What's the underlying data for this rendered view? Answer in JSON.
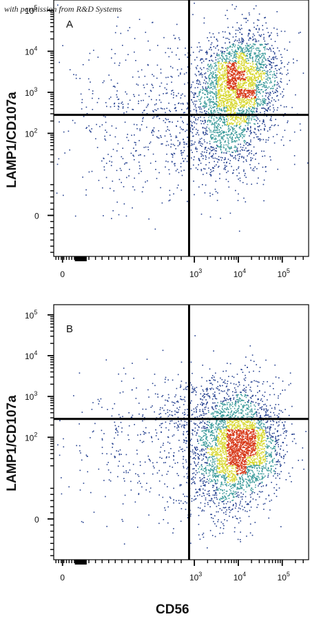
{
  "watermark": "with permission from R&D Systems",
  "colors": {
    "density_low": "#233f8f",
    "density_mid": "#3a9a9a",
    "density_high": "#d8d830",
    "density_peak": "#d83a1a",
    "quadrant_line": "#000000"
  },
  "x_label": "CD56",
  "chart_data": [
    {
      "type": "scatter",
      "panel_label": "A",
      "xlabel": "CD56",
      "ylabel": "LAMP1/CD107a",
      "scale": "biexponential",
      "xlim": [
        -0.2,
        5.6
      ],
      "ylim": [
        -1.0,
        5.25
      ],
      "x_ticks": [
        {
          "value": 0,
          "base": "0",
          "exp": ""
        },
        {
          "value": 3,
          "base": "10",
          "exp": "3"
        },
        {
          "value": 4,
          "base": "10",
          "exp": "4"
        },
        {
          "value": 5,
          "base": "10",
          "exp": "5"
        }
      ],
      "y_ticks": [
        {
          "value": 0,
          "base": "0",
          "exp": ""
        },
        {
          "value": 2,
          "base": "10",
          "exp": "2"
        },
        {
          "value": 3,
          "base": "10",
          "exp": "3"
        },
        {
          "value": 4,
          "base": "10",
          "exp": "4"
        },
        {
          "value": 5,
          "base": "10",
          "exp": "5"
        }
      ],
      "quadrant_gate": {
        "x": 2.88,
        "y": 2.45
      },
      "populations": [
        {
          "cx": 4.0,
          "cy": 3.25,
          "sx": 0.45,
          "sy": 0.6,
          "n": 2300,
          "rho": 0.2
        },
        {
          "cx": 3.8,
          "cy": 2.15,
          "sx": 0.55,
          "sy": 0.75,
          "n": 900,
          "rho": 0.1
        },
        {
          "cx": 2.3,
          "cy": 2.4,
          "sx": 1.2,
          "sy": 1.05,
          "n": 650,
          "rho": 0.15
        }
      ]
    },
    {
      "type": "scatter",
      "panel_label": "B",
      "xlabel": "CD56",
      "ylabel": "LAMP1/CD107a",
      "scale": "biexponential",
      "xlim": [
        -0.2,
        5.6
      ],
      "ylim": [
        -1.0,
        5.25
      ],
      "x_ticks": [
        {
          "value": 0,
          "base": "0",
          "exp": ""
        },
        {
          "value": 3,
          "base": "10",
          "exp": "3"
        },
        {
          "value": 4,
          "base": "10",
          "exp": "4"
        },
        {
          "value": 5,
          "base": "10",
          "exp": "5"
        }
      ],
      "y_ticks": [
        {
          "value": 0,
          "base": "0",
          "exp": ""
        },
        {
          "value": 2,
          "base": "10",
          "exp": "2"
        },
        {
          "value": 3,
          "base": "10",
          "exp": "3"
        },
        {
          "value": 4,
          "base": "10",
          "exp": "4"
        },
        {
          "value": 5,
          "base": "10",
          "exp": "5"
        }
      ],
      "quadrant_gate": {
        "x": 2.88,
        "y": 2.45
      },
      "populations": [
        {
          "cx": 4.05,
          "cy": 1.75,
          "sx": 0.45,
          "sy": 0.5,
          "n": 2300,
          "rho": 0.1
        },
        {
          "cx": 3.6,
          "cy": 2.6,
          "sx": 0.6,
          "sy": 0.55,
          "n": 700,
          "rho": 0.2
        },
        {
          "cx": 3.7,
          "cy": 0.8,
          "sx": 0.5,
          "sy": 0.55,
          "n": 500,
          "rho": 0.0
        },
        {
          "cx": 2.2,
          "cy": 1.9,
          "sx": 1.1,
          "sy": 0.95,
          "n": 450,
          "rho": 0.1
        }
      ]
    }
  ]
}
